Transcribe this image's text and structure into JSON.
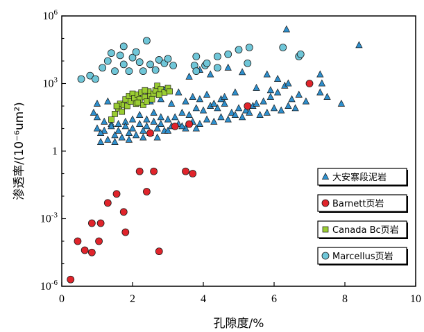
{
  "chart_data": {
    "type": "scatter",
    "xlabel": "孔隙度/%",
    "ylabel": "渗透率/(10⁻⁶um²)",
    "xlim": [
      0,
      10
    ],
    "ylim_exponent": [
      -6,
      6
    ],
    "yscale": "log",
    "x_ticks": [
      "0",
      "2",
      "4",
      "6",
      "8",
      "10"
    ],
    "y_ticks": [
      {
        "exp": 6,
        "base": "10",
        "sup": "6"
      },
      {
        "exp": 3,
        "base": "10",
        "sup": "3"
      },
      {
        "exp": 0,
        "base": "1",
        "sup": ""
      },
      {
        "exp": -3,
        "base": "10",
        "sup": "-3"
      },
      {
        "exp": -6,
        "base": "10",
        "sup": "-6"
      }
    ],
    "grid": false,
    "legend_position": "lower-right",
    "series": [
      {
        "name": "大安寨段泥岩",
        "marker": "triangle",
        "color": "#2e8fcd",
        "points": [
          [
            0.9,
            1.7
          ],
          [
            1.0,
            1.5
          ],
          [
            1.2,
            1.3
          ],
          [
            1.4,
            1.2
          ],
          [
            1.6,
            1.2
          ],
          [
            1.8,
            1.3
          ],
          [
            2.0,
            1.4
          ],
          [
            2.2,
            1.6
          ],
          [
            2.4,
            1.4
          ],
          [
            2.6,
            1.7
          ],
          [
            2.8,
            1.5
          ],
          [
            1.1,
            0.4
          ],
          [
            1.3,
            0.5
          ],
          [
            1.5,
            0.4
          ],
          [
            1.7,
            0.6
          ],
          [
            1.9,
            0.5
          ],
          [
            2.1,
            0.7
          ],
          [
            2.3,
            0.6
          ],
          [
            2.5,
            0.8
          ],
          [
            2.7,
            0.6
          ],
          [
            2.9,
            0.9
          ],
          [
            1.0,
            1.0
          ],
          [
            1.2,
            0.9
          ],
          [
            1.4,
            1.1
          ],
          [
            1.6,
            0.9
          ],
          [
            1.8,
            1.1
          ],
          [
            2.0,
            1.0
          ],
          [
            2.2,
            1.2
          ],
          [
            2.4,
            1.1
          ],
          [
            2.6,
            1.3
          ],
          [
            2.8,
            1.2
          ],
          [
            3.0,
            1.4
          ],
          [
            3.2,
            1.5
          ],
          [
            3.4,
            1.7
          ],
          [
            3.6,
            1.6
          ],
          [
            3.8,
            1.9
          ],
          [
            4.0,
            1.8
          ],
          [
            4.2,
            2.0
          ],
          [
            4.4,
            1.9
          ],
          [
            4.6,
            2.1
          ],
          [
            4.8,
            1.7
          ],
          [
            5.0,
            1.9
          ],
          [
            5.2,
            1.8
          ],
          [
            5.4,
            2.0
          ],
          [
            3.1,
            1.1
          ],
          [
            3.3,
            1.2
          ],
          [
            3.5,
            1.0
          ],
          [
            3.7,
            1.3
          ],
          [
            3.9,
            1.2
          ],
          [
            4.1,
            1.4
          ],
          [
            4.3,
            1.3
          ],
          [
            4.5,
            1.5
          ],
          [
            4.7,
            1.4
          ],
          [
            4.9,
            1.6
          ],
          [
            5.1,
            1.5
          ],
          [
            5.3,
            1.7
          ],
          [
            5.5,
            2.1
          ],
          [
            5.7,
            2.2
          ],
          [
            5.9,
            2.4
          ],
          [
            6.1,
            2.6
          ],
          [
            6.3,
            2.9
          ],
          [
            6.5,
            2.3
          ],
          [
            6.7,
            2.5
          ],
          [
            6.9,
            2.2
          ],
          [
            7.3,
            2.6
          ],
          [
            7.5,
            2.4
          ],
          [
            7.9,
            2.1
          ],
          [
            5.6,
            1.6
          ],
          [
            5.8,
            1.7
          ],
          [
            6.0,
            1.9
          ],
          [
            6.2,
            1.8
          ],
          [
            6.4,
            2.0
          ],
          [
            6.6,
            1.9
          ],
          [
            3.6,
            3.3
          ],
          [
            3.9,
            3.6
          ],
          [
            4.2,
            3.4
          ],
          [
            4.7,
            3.7
          ],
          [
            5.1,
            3.5
          ],
          [
            5.8,
            3.4
          ],
          [
            6.1,
            3.2
          ],
          [
            6.35,
            5.4
          ],
          [
            7.3,
            3.4
          ],
          [
            7.35,
            3.0
          ],
          [
            8.4,
            4.7
          ],
          [
            2.9,
            2.7
          ],
          [
            3.3,
            2.6
          ],
          [
            3.7,
            2.4
          ],
          [
            4.1,
            2.5
          ],
          [
            4.5,
            2.3
          ],
          [
            4.9,
            2.6
          ],
          [
            5.5,
            2.8
          ],
          [
            5.9,
            2.7
          ],
          [
            6.4,
            3.0
          ],
          [
            1.0,
            2.1
          ],
          [
            1.3,
            2.2
          ],
          [
            1.6,
            2.0
          ],
          [
            2.5,
            2.2
          ],
          [
            2.8,
            2.3
          ],
          [
            3.1,
            2.1
          ],
          [
            3.5,
            2.2
          ],
          [
            3.9,
            2.3
          ],
          [
            4.3,
            2.1
          ],
          [
            4.6,
            2.4
          ],
          [
            1.1,
            0.8
          ],
          [
            1.5,
            0.7
          ],
          [
            1.9,
            0.8
          ],
          [
            2.3,
            0.9
          ],
          [
            2.7,
            1.0
          ],
          [
            3.0,
            0.9
          ],
          [
            3.4,
            1.1
          ],
          [
            3.8,
            1.0
          ]
        ]
      },
      {
        "name": "Barnett页岩",
        "marker": "circle",
        "color": "#e0242b",
        "points": [
          [
            0.25,
            -5.7
          ],
          [
            0.45,
            -4.0
          ],
          [
            0.65,
            -4.4
          ],
          [
            0.85,
            -4.5
          ],
          [
            0.85,
            -3.2
          ],
          [
            1.05,
            -4.0
          ],
          [
            1.1,
            -3.2
          ],
          [
            1.3,
            -2.3
          ],
          [
            1.55,
            -1.9
          ],
          [
            1.75,
            -2.7
          ],
          [
            1.8,
            -3.6
          ],
          [
            2.2,
            -0.9
          ],
          [
            2.4,
            -1.8
          ],
          [
            2.6,
            -0.9
          ],
          [
            2.75,
            -4.45
          ],
          [
            3.5,
            -0.9
          ],
          [
            3.7,
            -1.0
          ],
          [
            2.5,
            0.8
          ],
          [
            3.2,
            1.1
          ],
          [
            3.6,
            1.2
          ],
          [
            5.25,
            2.0
          ],
          [
            7.0,
            3.0
          ]
        ]
      },
      {
        "name": "Canada  Bc页岩",
        "marker": "square",
        "color": "#9acd32",
        "points": [
          [
            1.4,
            1.4
          ],
          [
            1.5,
            1.65
          ],
          [
            1.6,
            1.9
          ],
          [
            1.65,
            2.1
          ],
          [
            1.7,
            1.75
          ],
          [
            1.75,
            2.05
          ],
          [
            1.8,
            2.3
          ],
          [
            1.85,
            2.0
          ],
          [
            1.9,
            2.45
          ],
          [
            1.95,
            2.2
          ],
          [
            2.0,
            2.55
          ],
          [
            2.05,
            2.35
          ],
          [
            2.1,
            2.1
          ],
          [
            2.15,
            2.5
          ],
          [
            2.2,
            2.3
          ],
          [
            2.25,
            2.6
          ],
          [
            2.3,
            2.05
          ],
          [
            2.35,
            2.4
          ],
          [
            2.4,
            2.2
          ],
          [
            2.45,
            2.65
          ],
          [
            2.5,
            2.45
          ],
          [
            2.55,
            2.3
          ],
          [
            2.6,
            2.55
          ],
          [
            2.65,
            2.7
          ],
          [
            2.7,
            2.9
          ],
          [
            2.8,
            2.75
          ],
          [
            2.9,
            2.6
          ],
          [
            3.0,
            2.8
          ],
          [
            3.05,
            2.65
          ],
          [
            2.15,
            2.15
          ],
          [
            1.55,
            2.0
          ],
          [
            2.35,
            2.7
          ],
          [
            2.75,
            2.5
          ]
        ]
      },
      {
        "name": "Marcellus页岩",
        "marker": "circle",
        "color": "#6fc6d8",
        "points": [
          [
            0.55,
            3.2
          ],
          [
            0.8,
            3.35
          ],
          [
            0.95,
            3.2
          ],
          [
            1.15,
            3.7
          ],
          [
            1.3,
            4.0
          ],
          [
            1.4,
            4.35
          ],
          [
            1.5,
            3.55
          ],
          [
            1.65,
            4.25
          ],
          [
            1.75,
            3.85
          ],
          [
            1.75,
            4.65
          ],
          [
            1.9,
            3.55
          ],
          [
            2.0,
            4.15
          ],
          [
            2.1,
            4.4
          ],
          [
            2.2,
            3.95
          ],
          [
            2.3,
            3.55
          ],
          [
            2.4,
            4.9
          ],
          [
            2.5,
            3.85
          ],
          [
            2.65,
            3.6
          ],
          [
            2.75,
            4.05
          ],
          [
            2.9,
            3.9
          ],
          [
            3.0,
            4.1
          ],
          [
            3.15,
            3.8
          ],
          [
            3.75,
            3.8
          ],
          [
            3.8,
            3.55
          ],
          [
            3.8,
            4.2
          ],
          [
            4.05,
            3.8
          ],
          [
            4.1,
            3.9
          ],
          [
            4.4,
            3.7
          ],
          [
            4.4,
            4.2
          ],
          [
            4.7,
            4.3
          ],
          [
            5.0,
            4.5
          ],
          [
            5.25,
            3.9
          ],
          [
            5.3,
            4.6
          ],
          [
            6.25,
            4.6
          ],
          [
            6.7,
            4.2
          ],
          [
            6.75,
            4.3
          ]
        ]
      }
    ]
  }
}
